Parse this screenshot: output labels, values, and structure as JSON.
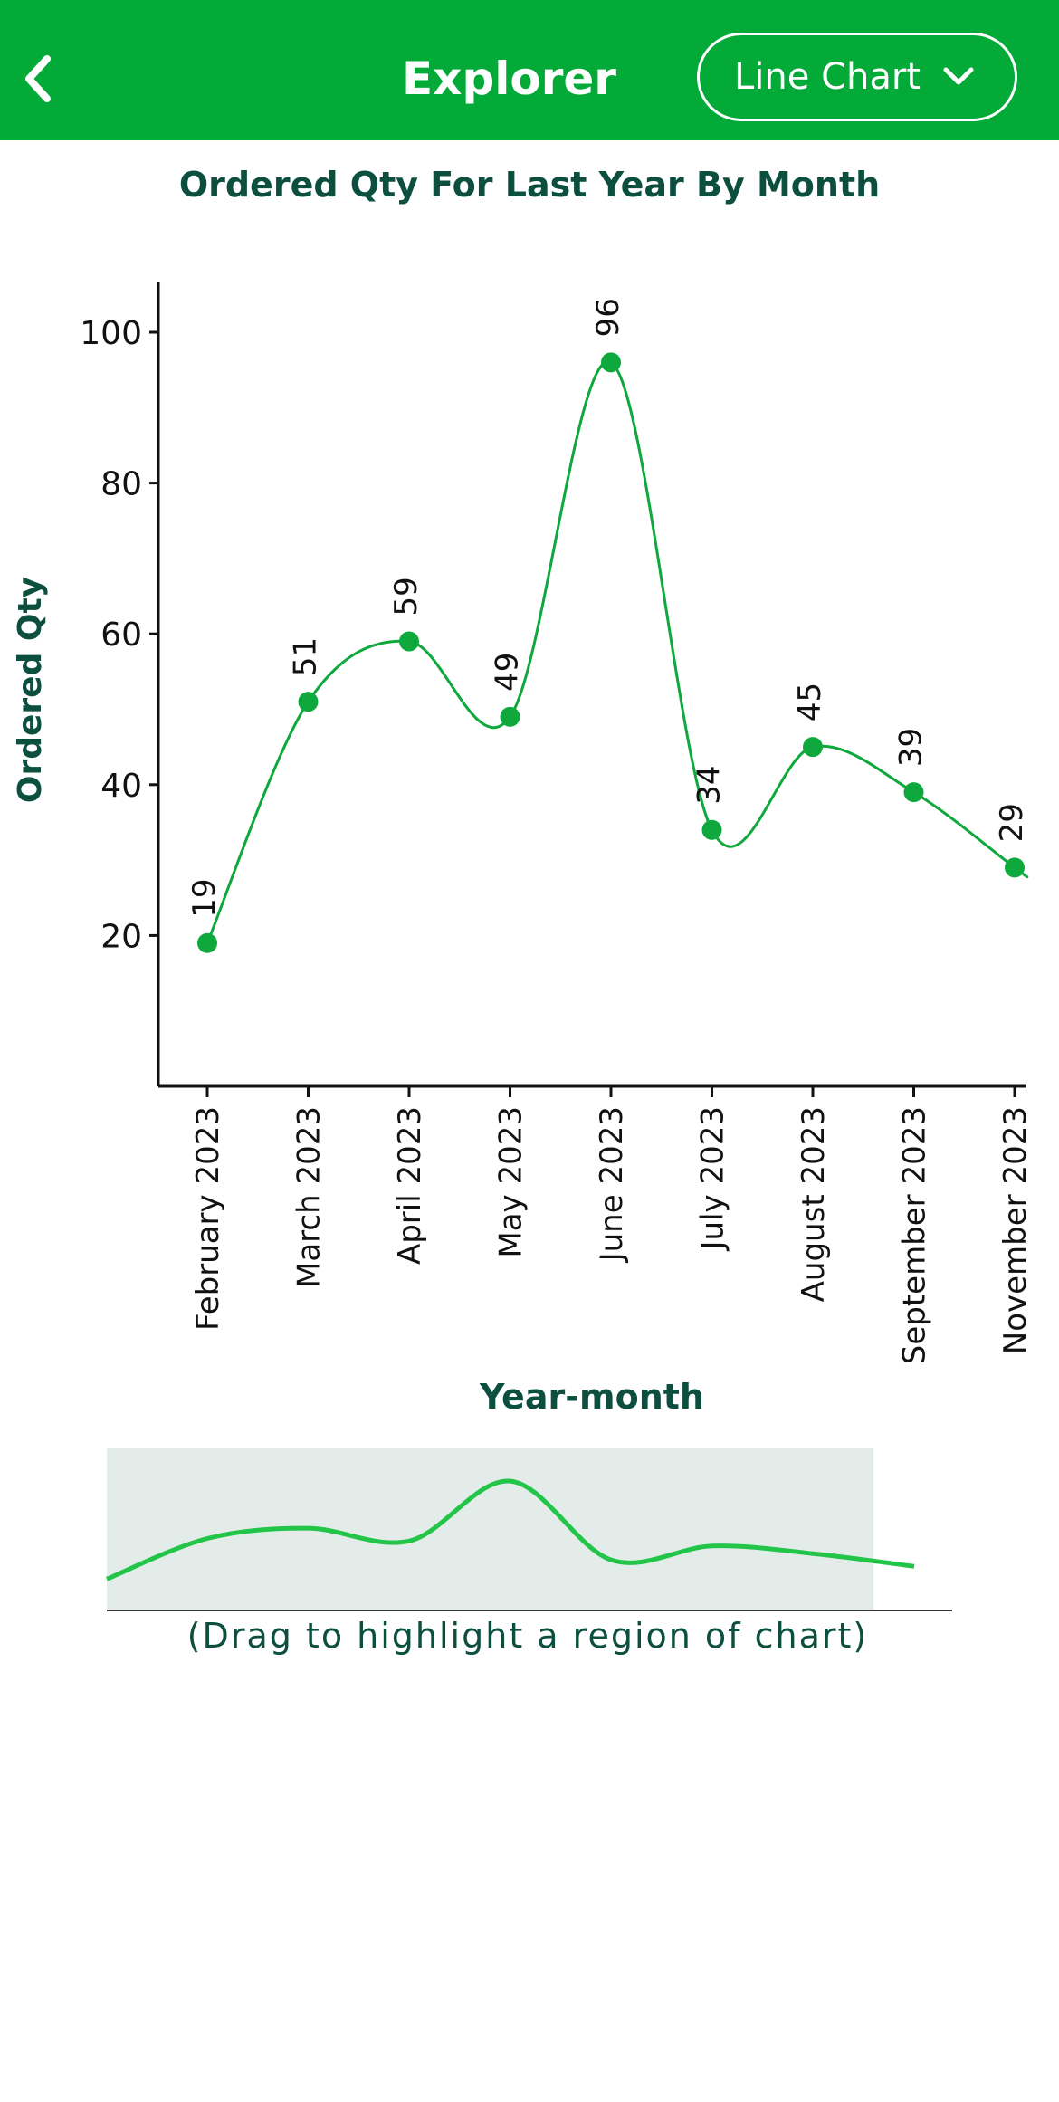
{
  "header": {
    "title": "Explorer",
    "chart_type_label": "Line Chart",
    "back_icon": "chevron-left-icon",
    "dropdown_icon": "chevron-down-icon"
  },
  "colors": {
    "header_bg": "#03aa38",
    "title_text": "#0c4f3e",
    "line": "#0ea83d",
    "overview_line": "#22c548",
    "overview_bg": "#e3ece9"
  },
  "chart_data": {
    "type": "line",
    "title": "Ordered Qty For Last Year By Month",
    "xlabel": "Year-month",
    "ylabel": "Ordered Qty",
    "categories": [
      "February 2023",
      "March 2023",
      "April 2023",
      "May 2023",
      "June 2023",
      "July 2023",
      "August 2023",
      "September 2023",
      "November 2023"
    ],
    "values": [
      19,
      51,
      59,
      49,
      96,
      34,
      45,
      39,
      29
    ],
    "data_labels": [
      "19",
      "51",
      "59",
      "49",
      "96",
      "34",
      "45",
      "39",
      "29"
    ],
    "y_ticks": [
      "20",
      "40",
      "60",
      "80",
      "100"
    ],
    "ylim": [
      0,
      107
    ],
    "curve": "smooth",
    "grid": false,
    "legend": "none"
  },
  "brush": {
    "hint": "(Drag to highlight a region of chart)"
  }
}
